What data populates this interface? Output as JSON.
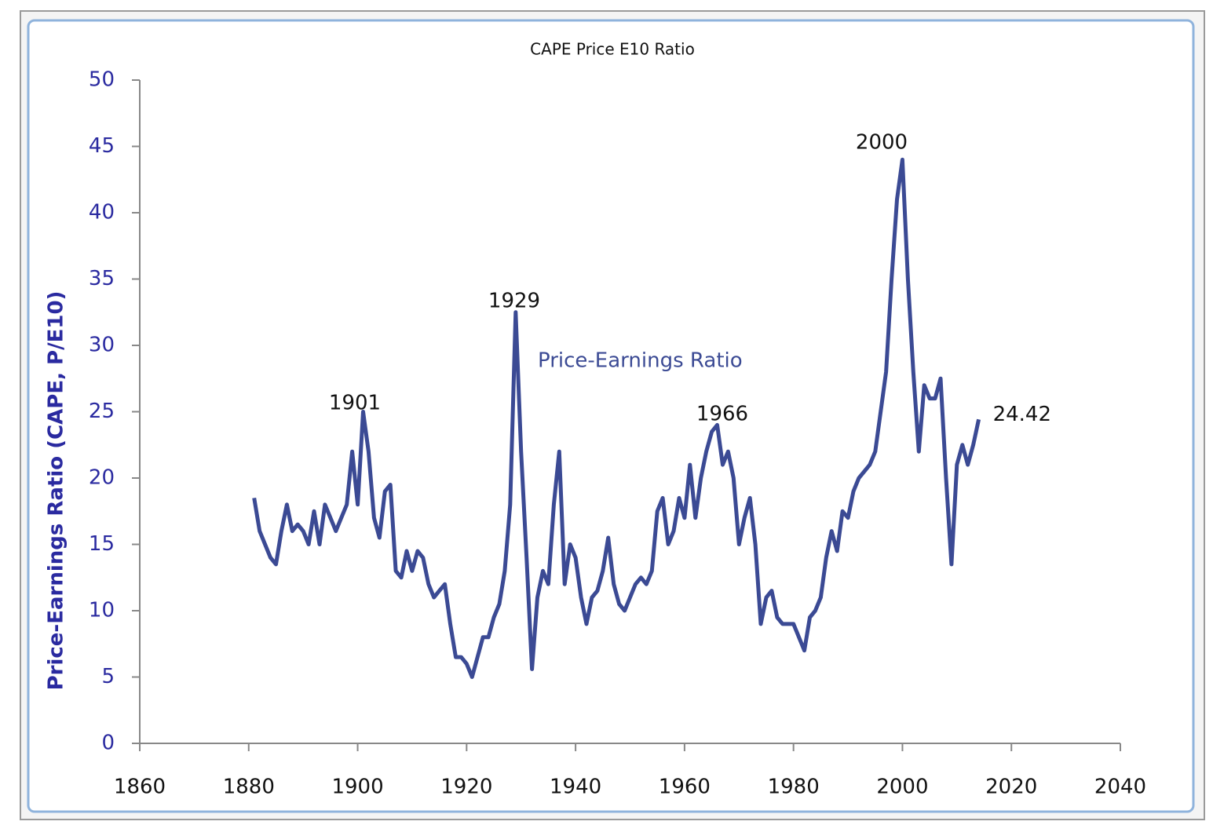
{
  "chart_data": {
    "type": "line",
    "title": "CAPE Price E10 Ratio",
    "y_label": "Price-Earnings Ratio (CAPE, P/E10)",
    "annotations": [
      "1901",
      "1929",
      "1966",
      "2000"
    ],
    "x": [
      1881,
      1882,
      1883,
      1884,
      1885,
      1886,
      1887,
      1888,
      1889,
      1890,
      1891,
      1892,
      1893,
      1894,
      1895,
      1896,
      1897,
      1898,
      1899,
      1900,
      1901,
      1902,
      1903,
      1904,
      1905,
      1906,
      1907,
      1908,
      1909,
      1910,
      1911,
      1912,
      1913,
      1914,
      1915,
      1916,
      1917,
      1918,
      1919,
      1920,
      1921,
      1922,
      1923,
      1924,
      1925,
      1926,
      1927,
      1928,
      1929,
      1930,
      1931,
      1932,
      1933,
      1934,
      1935,
      1936,
      1937,
      1938,
      1939,
      1940,
      1941,
      1942,
      1943,
      1944,
      1945,
      1946,
      1947,
      1948,
      1949,
      1950,
      1951,
      1952,
      1953,
      1954,
      1955,
      1956,
      1957,
      1958,
      1959,
      1960,
      1961,
      1962,
      1963,
      1964,
      1965,
      1966,
      1967,
      1968,
      1969,
      1970,
      1971,
      1972,
      1973,
      1974,
      1975,
      1976,
      1977,
      1978,
      1979,
      1980,
      1981,
      1982,
      1983,
      1984,
      1985,
      1986,
      1987,
      1988,
      1989,
      1990,
      1991,
      1992,
      1993,
      1994,
      1995,
      1996,
      1997,
      1998,
      1999,
      2000,
      2001,
      2002,
      2003,
      2004,
      2005,
      2006,
      2007,
      2008,
      2009,
      2010,
      2011,
      2012,
      2013,
      2014
    ],
    "series": [
      {
        "name": "Price-Earnings Ratio",
        "color": "#3b4a94",
        "values": [
          18.5,
          16,
          15,
          14,
          13.5,
          16,
          18,
          16,
          16.5,
          16,
          15,
          17.5,
          15,
          18,
          17,
          16,
          17,
          18,
          22,
          18,
          25,
          22,
          17,
          15.5,
          19,
          19.5,
          13,
          12.5,
          14.5,
          13,
          14.5,
          14,
          12,
          11,
          11.5,
          12,
          9,
          6.5,
          6.5,
          6,
          5,
          6.5,
          8,
          8,
          9.5,
          10.5,
          13,
          18,
          32.5,
          22,
          14,
          5.6,
          11,
          13,
          12,
          18,
          22,
          12,
          15,
          14,
          11,
          9,
          11,
          11.5,
          13,
          15.5,
          12,
          10.5,
          10,
          11,
          12,
          12.5,
          12,
          13,
          17.5,
          18.5,
          15,
          16,
          18.5,
          17,
          21,
          17,
          20,
          22,
          23.5,
          24,
          21,
          22,
          20,
          15,
          17,
          18.5,
          15,
          9,
          11,
          11.5,
          9.5,
          9,
          9,
          9,
          8,
          7,
          9.5,
          10,
          11,
          14,
          16,
          14.5,
          17.5,
          17,
          19,
          20,
          20.5,
          21,
          22,
          25,
          28,
          35,
          41,
          44,
          35,
          28,
          22,
          27,
          26,
          26,
          27.5,
          20,
          13.5,
          21,
          22.5,
          21,
          22.5,
          24.42
        ]
      }
    ],
    "xlim": [
      1860,
      2040
    ],
    "xticks": [
      1860,
      1880,
      1900,
      1920,
      1940,
      1960,
      1980,
      2000,
      2020,
      2040
    ],
    "ylim": [
      0,
      50
    ],
    "yticks": [
      0,
      5,
      10,
      15,
      20,
      25,
      30,
      35,
      40,
      45,
      50
    ]
  }
}
